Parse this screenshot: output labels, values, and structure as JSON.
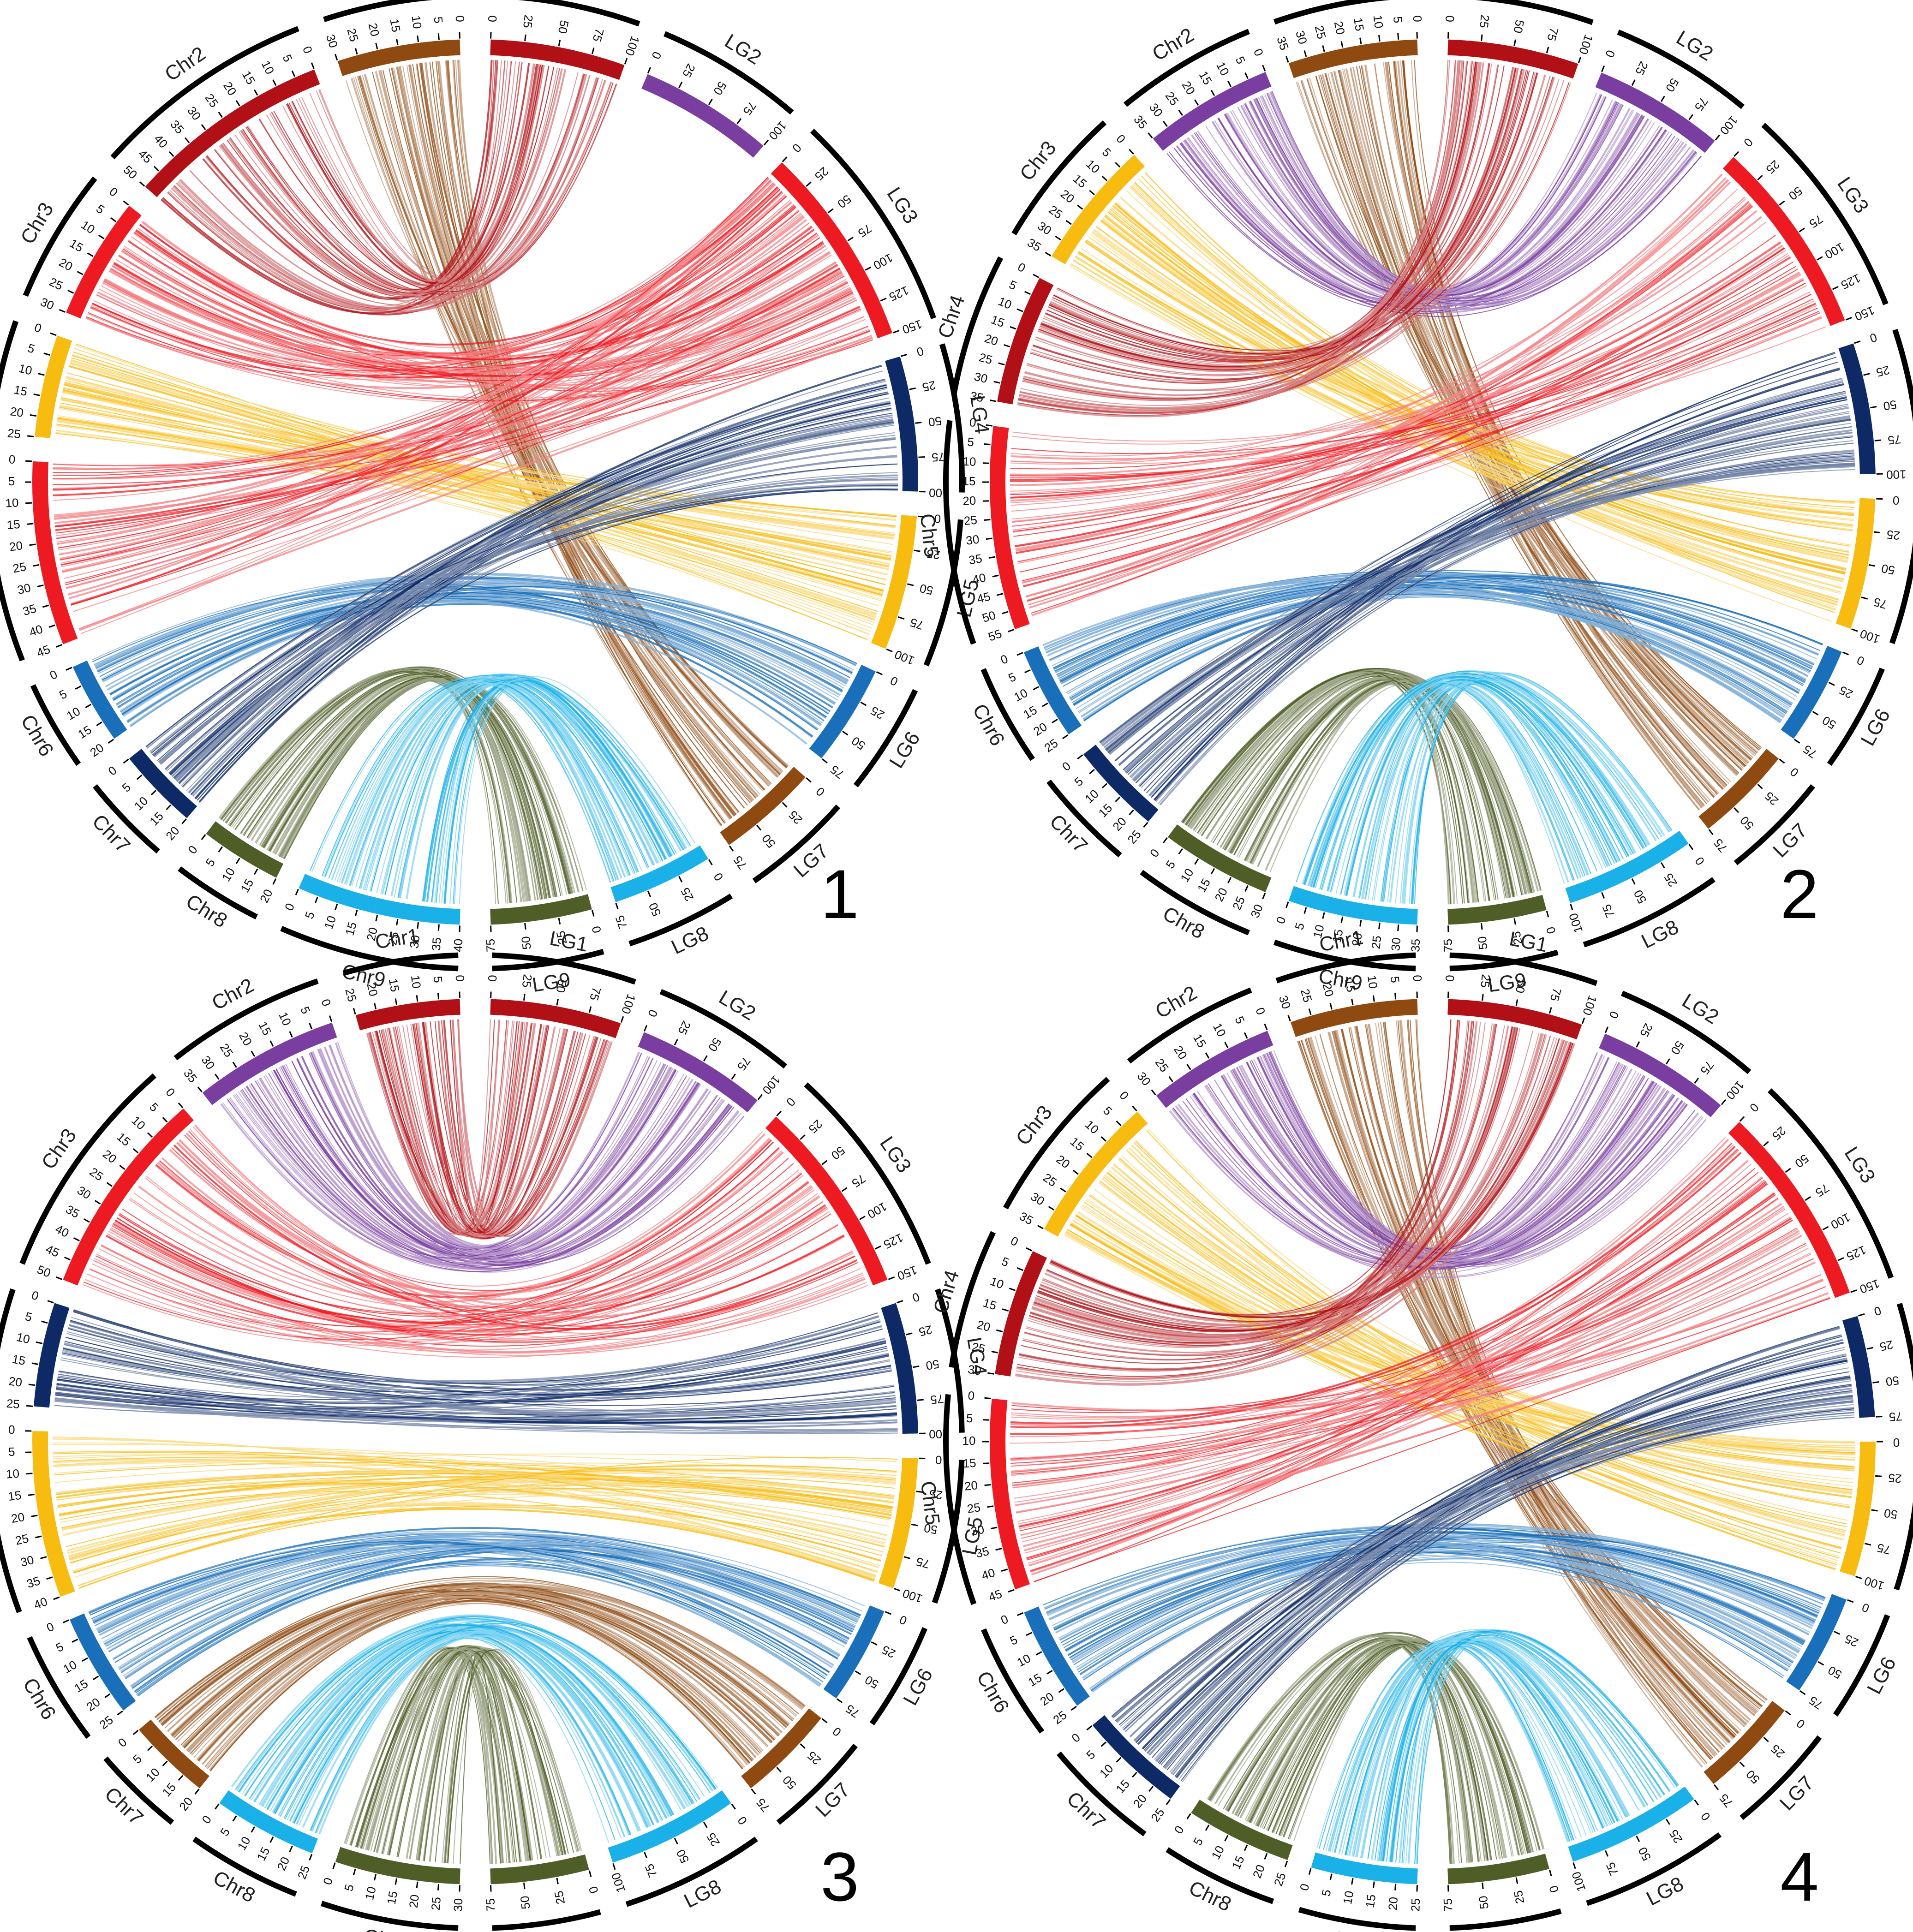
{
  "figure": {
    "panels": [
      {
        "number": "1",
        "chr": [
          {
            "label": "Chr1",
            "ticks": [
              "0",
              "5",
              "10",
              "15",
              "20",
              "25",
              "30"
            ]
          },
          {
            "label": "Chr2",
            "ticks": [
              "0",
              "5",
              "10",
              "15",
              "20",
              "25",
              "30",
              "35",
              "40",
              "45",
              "50"
            ]
          },
          {
            "label": "Chr3",
            "ticks": [
              "0",
              "5",
              "10",
              "15",
              "20",
              "25",
              "30"
            ]
          },
          {
            "label": "Chr4",
            "ticks": [
              "0",
              "5",
              "10",
              "15",
              "20",
              "25"
            ]
          },
          {
            "label": "Chr5",
            "ticks": [
              "0",
              "5",
              "10",
              "15",
              "20",
              "25",
              "30",
              "35",
              "40",
              "45"
            ]
          },
          {
            "label": "Chr6",
            "ticks": [
              "0",
              "5",
              "10",
              "15",
              "20"
            ]
          },
          {
            "label": "Chr7",
            "ticks": [
              "0",
              "5",
              "10",
              "15",
              "20"
            ]
          },
          {
            "label": "Chr8",
            "ticks": [
              "0",
              "5",
              "10",
              "15",
              "20"
            ]
          },
          {
            "label": "Chr9",
            "ticks": [
              "0",
              "5",
              "10",
              "15",
              "20",
              "25",
              "30",
              "35",
              "40"
            ]
          }
        ],
        "lg": [
          {
            "label": "LG1",
            "ticks": [
              "0",
              "25",
              "50",
              "75",
              "100"
            ]
          },
          {
            "label": "LG2",
            "ticks": [
              "0",
              "25",
              "50",
              "75",
              "100"
            ]
          },
          {
            "label": "LG3",
            "ticks": [
              "0",
              "25",
              "50",
              "75",
              "100",
              "125",
              "150"
            ]
          },
          {
            "label": "LG4",
            "ticks": [
              "0",
              "25",
              "50",
              "75",
              "100"
            ]
          },
          {
            "label": "LG5",
            "ticks": [
              "0",
              "25",
              "50",
              "75",
              "100"
            ]
          },
          {
            "label": "LG6",
            "ticks": [
              "0",
              "25",
              "50",
              "75"
            ]
          },
          {
            "label": "LG7",
            "ticks": [
              "0",
              "25",
              "50",
              "75"
            ]
          },
          {
            "label": "LG8",
            "ticks": [
              "0",
              "25",
              "50",
              "75"
            ]
          },
          {
            "label": "LG9",
            "ticks": [
              "0",
              "25",
              "50",
              "75"
            ]
          }
        ],
        "links": [
          [
            0,
            6
          ],
          [
            1,
            0
          ],
          [
            2,
            2
          ],
          [
            3,
            4
          ],
          [
            4,
            2
          ],
          [
            5,
            5
          ],
          [
            6,
            3
          ],
          [
            7,
            8
          ],
          [
            8,
            7
          ]
        ]
      },
      {
        "number": "2",
        "chr": [
          {
            "label": "Chr1",
            "ticks": [
              "0",
              "5",
              "10",
              "15",
              "20",
              "25",
              "30",
              "35"
            ]
          },
          {
            "label": "Chr2",
            "ticks": [
              "0",
              "5",
              "10",
              "15",
              "20",
              "25",
              "30",
              "35"
            ]
          },
          {
            "label": "Chr3",
            "ticks": [
              "0",
              "5",
              "10",
              "15",
              "20",
              "25",
              "30",
              "35"
            ]
          },
          {
            "label": "Chr4",
            "ticks": [
              "0",
              "5",
              "10",
              "15",
              "20",
              "25",
              "30",
              "35"
            ]
          },
          {
            "label": "Chr5",
            "ticks": [
              "0",
              "5",
              "10",
              "15",
              "20",
              "25",
              "30",
              "35",
              "40",
              "45",
              "50",
              "55"
            ]
          },
          {
            "label": "Chr6",
            "ticks": [
              "0",
              "5",
              "10",
              "15",
              "20",
              "25"
            ]
          },
          {
            "label": "Chr7",
            "ticks": [
              "0",
              "5",
              "10",
              "15",
              "20",
              "25"
            ]
          },
          {
            "label": "Chr8",
            "ticks": [
              "0",
              "5",
              "10",
              "15",
              "20",
              "25",
              "30"
            ]
          },
          {
            "label": "Chr9",
            "ticks": [
              "0",
              "5",
              "10",
              "15",
              "20",
              "25",
              "30",
              "35"
            ]
          }
        ],
        "lg": [
          {
            "label": "LG1",
            "ticks": [
              "0",
              "25",
              "50",
              "75",
              "100"
            ]
          },
          {
            "label": "LG2",
            "ticks": [
              "0",
              "25",
              "50",
              "75",
              "100"
            ]
          },
          {
            "label": "LG3",
            "ticks": [
              "0",
              "25",
              "50",
              "75",
              "100",
              "125",
              "150"
            ]
          },
          {
            "label": "LG4",
            "ticks": [
              "0",
              "25",
              "50",
              "75",
              "100"
            ]
          },
          {
            "label": "LG5",
            "ticks": [
              "0",
              "25",
              "50",
              "75",
              "100"
            ]
          },
          {
            "label": "LG6",
            "ticks": [
              "0",
              "25",
              "50",
              "75"
            ]
          },
          {
            "label": "LG7",
            "ticks": [
              "0",
              "25",
              "50",
              "75"
            ]
          },
          {
            "label": "LG8",
            "ticks": [
              "0",
              "25",
              "50",
              "75",
              "100"
            ]
          },
          {
            "label": "LG9",
            "ticks": [
              "0",
              "25",
              "50",
              "75"
            ]
          }
        ],
        "links": [
          [
            0,
            6
          ],
          [
            1,
            1
          ],
          [
            2,
            4
          ],
          [
            3,
            0
          ],
          [
            4,
            2
          ],
          [
            5,
            5
          ],
          [
            6,
            3
          ],
          [
            7,
            8
          ],
          [
            8,
            7
          ]
        ]
      },
      {
        "number": "3",
        "chr": [
          {
            "label": "Chr1",
            "ticks": [
              "0",
              "5",
              "10",
              "15",
              "20",
              "25"
            ]
          },
          {
            "label": "Chr2",
            "ticks": [
              "0",
              "5",
              "10",
              "15",
              "20",
              "25",
              "30",
              "35"
            ]
          },
          {
            "label": "Chr3",
            "ticks": [
              "0",
              "5",
              "10",
              "15",
              "20",
              "25",
              "30",
              "35",
              "40",
              "45",
              "50"
            ]
          },
          {
            "label": "Chr4",
            "ticks": [
              "0",
              "5",
              "10",
              "15",
              "20",
              "25"
            ]
          },
          {
            "label": "Chr5",
            "ticks": [
              "0",
              "5",
              "10",
              "15",
              "20",
              "25",
              "30",
              "35",
              "40"
            ]
          },
          {
            "label": "Chr6",
            "ticks": [
              "0",
              "5",
              "10",
              "15",
              "20",
              "25"
            ]
          },
          {
            "label": "Chr7",
            "ticks": [
              "0",
              "5",
              "10",
              "15",
              "20"
            ]
          },
          {
            "label": "Chr8",
            "ticks": [
              "0",
              "5",
              "10",
              "15",
              "20",
              "25"
            ]
          },
          {
            "label": "Chr9",
            "ticks": [
              "0",
              "5",
              "10",
              "15",
              "20",
              "25",
              "30"
            ]
          }
        ],
        "lg": [
          {
            "label": "LG1",
            "ticks": [
              "0",
              "25",
              "50",
              "75",
              "100"
            ]
          },
          {
            "label": "LG2",
            "ticks": [
              "0",
              "25",
              "50",
              "75",
              "100"
            ]
          },
          {
            "label": "LG3",
            "ticks": [
              "0",
              "25",
              "50",
              "75",
              "100",
              "125",
              "150"
            ]
          },
          {
            "label": "LG4",
            "ticks": [
              "0",
              "25",
              "50",
              "75",
              "100"
            ]
          },
          {
            "label": "LG5",
            "ticks": [
              "0",
              "25",
              "50",
              "75",
              "100"
            ]
          },
          {
            "label": "LG6",
            "ticks": [
              "0",
              "25",
              "50",
              "75"
            ]
          },
          {
            "label": "LG7",
            "ticks": [
              "0",
              "25",
              "50",
              "75"
            ]
          },
          {
            "label": "LG8",
            "ticks": [
              "0",
              "25",
              "50",
              "75",
              "100"
            ]
          },
          {
            "label": "LG9",
            "ticks": [
              "0",
              "25",
              "50",
              "75"
            ]
          }
        ],
        "links": [
          [
            0,
            0
          ],
          [
            1,
            1
          ],
          [
            2,
            2
          ],
          [
            3,
            3
          ],
          [
            4,
            4
          ],
          [
            5,
            5
          ],
          [
            6,
            6
          ],
          [
            7,
            7
          ],
          [
            8,
            8
          ]
        ]
      },
      {
        "number": "4",
        "chr": [
          {
            "label": "Chr1",
            "ticks": [
              "0",
              "5",
              "10",
              "15",
              "20",
              "25",
              "30"
            ]
          },
          {
            "label": "Chr2",
            "ticks": [
              "0",
              "5",
              "10",
              "15",
              "20",
              "25",
              "30"
            ]
          },
          {
            "label": "Chr3",
            "ticks": [
              "0",
              "5",
              "10",
              "15",
              "20",
              "25",
              "30",
              "35"
            ]
          },
          {
            "label": "Chr4",
            "ticks": [
              "0",
              "5",
              "10",
              "15",
              "20",
              "25",
              "30"
            ]
          },
          {
            "label": "Chr5",
            "ticks": [
              "0",
              "5",
              "10",
              "15",
              "20",
              "25",
              "30",
              "35",
              "40",
              "45"
            ]
          },
          {
            "label": "Chr6",
            "ticks": [
              "0",
              "5",
              "10",
              "15",
              "20",
              "25"
            ]
          },
          {
            "label": "Chr7",
            "ticks": [
              "0",
              "5",
              "10",
              "15",
              "20",
              "25"
            ]
          },
          {
            "label": "Chr8",
            "ticks": [
              "0",
              "5",
              "10",
              "15",
              "20",
              "25"
            ]
          },
          {
            "label": "Chr9",
            "ticks": [
              "0",
              "5",
              "10",
              "15",
              "20",
              "25"
            ]
          }
        ],
        "lg": [
          {
            "label": "LG1",
            "ticks": [
              "0",
              "25",
              "50",
              "75",
              "100"
            ]
          },
          {
            "label": "LG2",
            "ticks": [
              "0",
              "25",
              "50",
              "75",
              "100"
            ]
          },
          {
            "label": "LG3",
            "ticks": [
              "0",
              "25",
              "50",
              "75",
              "100",
              "125",
              "150"
            ]
          },
          {
            "label": "LG4",
            "ticks": [
              "0",
              "25",
              "50",
              "75"
            ]
          },
          {
            "label": "LG5",
            "ticks": [
              "0",
              "25",
              "50",
              "75",
              "100"
            ]
          },
          {
            "label": "LG6",
            "ticks": [
              "0",
              "25",
              "50",
              "75"
            ]
          },
          {
            "label": "LG7",
            "ticks": [
              "0",
              "25",
              "50",
              "75"
            ]
          },
          {
            "label": "LG8",
            "ticks": [
              "0",
              "25",
              "50",
              "75",
              "100"
            ]
          },
          {
            "label": "LG9",
            "ticks": [
              "0",
              "25",
              "50",
              "75"
            ]
          }
        ],
        "links": [
          [
            0,
            6
          ],
          [
            1,
            1
          ],
          [
            2,
            4
          ],
          [
            3,
            0
          ],
          [
            4,
            2
          ],
          [
            5,
            5
          ],
          [
            6,
            3
          ],
          [
            7,
            8
          ],
          [
            8,
            7
          ]
        ]
      }
    ],
    "lg_colors": [
      "#b01016",
      "#7a3da0",
      "#ee1a22",
      "#0d2a66",
      "#f8bb10",
      "#1a6fba",
      "#8e4a10",
      "#1ab0e8",
      "#4f5e26"
    ]
  }
}
